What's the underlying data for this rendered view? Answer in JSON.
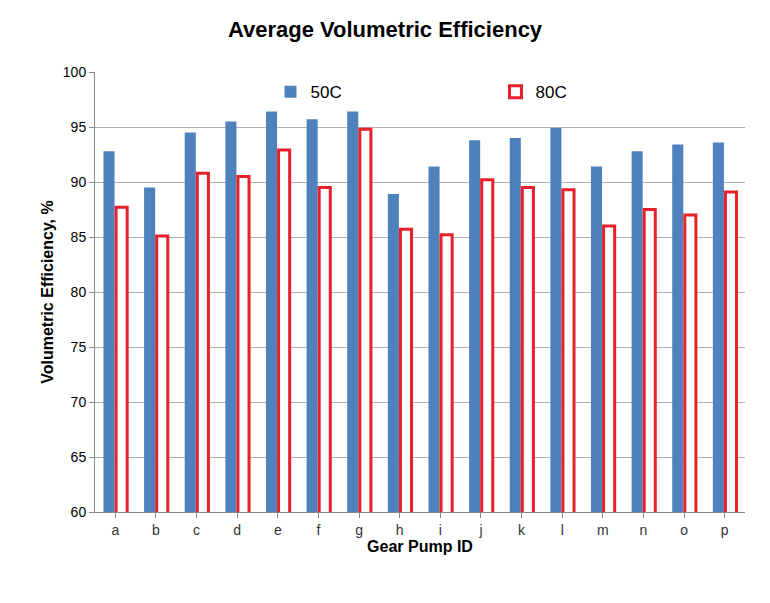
{
  "chart_data": {
    "type": "bar",
    "title": "Average Volumetric Efficiency",
    "x_label": "Gear Pump ID",
    "y_label": "Volumetric Efficiency, %",
    "categories": [
      "a",
      "b",
      "c",
      "d",
      "e",
      "f",
      "g",
      "h",
      "i",
      "j",
      "k",
      "l",
      "m",
      "n",
      "o",
      "p"
    ],
    "series": [
      {
        "name": "50C",
        "color": "#4f81bd",
        "marker": "solid",
        "values": [
          92.8,
          89.5,
          94.5,
          95.5,
          96.4,
          95.7,
          96.4,
          88.9,
          91.4,
          93.8,
          94.0,
          94.9,
          91.4,
          92.8,
          93.4,
          93.6
        ]
      },
      {
        "name": "80C",
        "color": "#e8202a",
        "marker": "hollow",
        "values": [
          87.7,
          85.1,
          90.8,
          90.5,
          92.9,
          89.5,
          94.8,
          85.7,
          85.2,
          90.2,
          89.5,
          89.3,
          86.0,
          87.5,
          87.0,
          89.1
        ]
      }
    ],
    "ylim": [
      60,
      100
    ],
    "yticks": [
      60,
      65,
      70,
      75,
      80,
      85,
      90,
      95,
      100
    ],
    "grid": true,
    "legend": "top"
  }
}
